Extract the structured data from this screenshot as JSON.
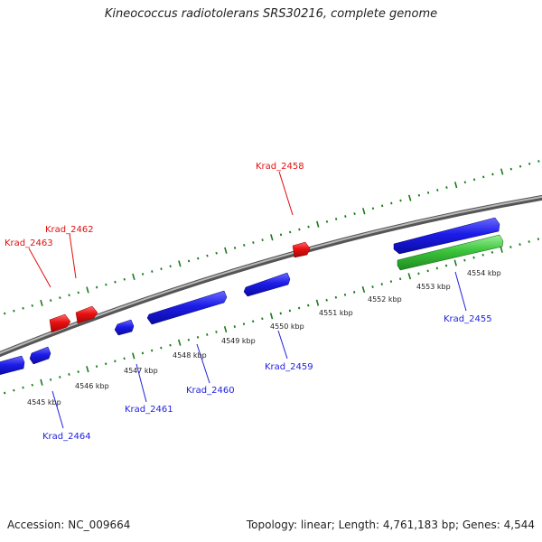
{
  "title": "Kineococcus radiotolerans SRS30216, complete genome",
  "footer": {
    "accession": "Accession: NC_009664",
    "topology": "Topology: linear; Length: 4,761,183 bp; Genes: 4,544"
  },
  "colors": {
    "backbone": "#888888",
    "forward_gene": "#1f1fe0",
    "reverse_gene": "#e01010",
    "rna_gene": "#3cc43c",
    "tick_line": "#1a7a1a"
  },
  "scale_labels": [
    {
      "text": "4545 kbp",
      "kbp": 4545
    },
    {
      "text": "4546 kbp",
      "kbp": 4546
    },
    {
      "text": "4547 kbp",
      "kbp": 4547
    },
    {
      "text": "4548 kbp",
      "kbp": 4548
    },
    {
      "text": "4549 kbp",
      "kbp": 4549
    },
    {
      "text": "4550 kbp",
      "kbp": 4550
    },
    {
      "text": "4551 kbp",
      "kbp": 4551
    },
    {
      "text": "4552 kbp",
      "kbp": 4552
    },
    {
      "text": "4553 kbp",
      "kbp": 4553
    },
    {
      "text": "4554 kbp",
      "kbp": 4554
    }
  ],
  "gene_labels": [
    {
      "text": "Krad_2458",
      "strand": "reverse"
    },
    {
      "text": "Krad_2462",
      "strand": "reverse"
    },
    {
      "text": "Krad_2463",
      "strand": "reverse"
    },
    {
      "text": "Krad_2455",
      "strand": "forward"
    },
    {
      "text": "Krad_2459",
      "strand": "forward"
    },
    {
      "text": "Krad_2460",
      "strand": "forward"
    },
    {
      "text": "Krad_2461",
      "strand": "forward"
    },
    {
      "text": "Krad_2464",
      "strand": "forward"
    }
  ]
}
